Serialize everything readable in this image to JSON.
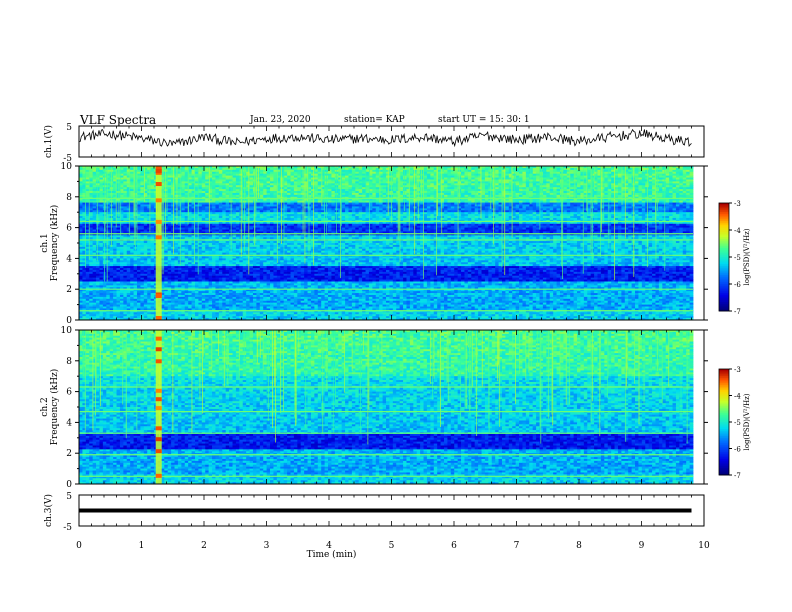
{
  "header": {
    "title": "VLF Spectra",
    "date": "Jan. 23, 2020",
    "station": "station= KAP",
    "start": "start  UT =   15: 30: 1"
  },
  "colorbar": {
    "label": "log(PSD)(V²/Hz)",
    "ticks": [
      "-3",
      "-4",
      "-5",
      "-6",
      "-7"
    ]
  },
  "chart_data": [
    {
      "type": "line",
      "title": "",
      "ylabel": "ch.1(V)",
      "xlim": [
        0,
        10
      ],
      "ylim": [
        -5,
        5
      ],
      "yticks": [
        "5",
        "-5"
      ],
      "description_series": "waveform",
      "series": [
        {
          "x": [
            0,
            0.5,
            1.0,
            1.5,
            2.0,
            2.5,
            3.0,
            3.5,
            4.0,
            4.5,
            5.0,
            5.5,
            6.0,
            6.5,
            7.0,
            7.5,
            8.0,
            8.5,
            9.0,
            9.5,
            9.8
          ],
          "values": [
            1.5,
            2.5,
            1.0,
            -1.0,
            1.5,
            -0.5,
            1.0,
            1.5,
            0.5,
            1.0,
            0.5,
            1.5,
            0.0,
            2.0,
            0.5,
            1.5,
            0.0,
            1.5,
            2.5,
            0.5,
            0.0
          ]
        }
      ]
    },
    {
      "type": "heatmap",
      "title": "",
      "ylabel": "ch.1 Frequency (kHz)",
      "xlim": [
        0,
        9.8
      ],
      "ylim": [
        0,
        10
      ],
      "yticks": [
        "0",
        "2",
        "4",
        "6",
        "8",
        "10"
      ],
      "zlim": [
        -7,
        -3
      ],
      "dark_bands_khz": [
        [
          2.5,
          3.5
        ],
        [
          5.5,
          6.2
        ],
        [
          7.0,
          7.6
        ]
      ],
      "bright_lines_khz": [
        0.6,
        2.0,
        4.2,
        5.2,
        5.6,
        6.4,
        7.9
      ],
      "broadband_burst_min": 1.25
    },
    {
      "type": "heatmap",
      "title": "",
      "ylabel": "ch.2 Frequency (kHz)",
      "xlim": [
        0,
        9.8
      ],
      "ylim": [
        0,
        10
      ],
      "yticks": [
        "0",
        "2",
        "4",
        "6",
        "8",
        "10"
      ],
      "zlim": [
        -7,
        -3
      ],
      "dark_bands_khz": [
        [
          2.2,
          3.3
        ]
      ],
      "bright_lines_khz": [
        0.5,
        1.9,
        3.3,
        4.7,
        6.3
      ],
      "broadband_burst_min": 1.25
    },
    {
      "type": "line",
      "title": "",
      "ylabel": "ch.3(V)",
      "xlabel": "Time (min)",
      "xlim": [
        0,
        10
      ],
      "ylim": [
        -5,
        5
      ],
      "yticks": [
        "5",
        "-5"
      ],
      "xticks": [
        "0",
        "1",
        "2",
        "3",
        "4",
        "5",
        "6",
        "7",
        "8",
        "9",
        "10"
      ],
      "series": [
        {
          "x": [
            0,
            9.8
          ],
          "values": [
            0,
            0
          ]
        }
      ]
    }
  ]
}
